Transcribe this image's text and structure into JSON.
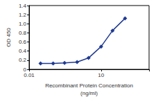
{
  "chart_data": {
    "type": "line",
    "x_label": "Recombinant Protein Concentration\n(ng/ml)",
    "y_label": "OD 450",
    "x": [
      0.03,
      0.1,
      0.3,
      1,
      3,
      10,
      30,
      100
    ],
    "values": [
      0.13,
      0.13,
      0.14,
      0.16,
      0.25,
      0.5,
      0.85,
      1.12
    ],
    "color": "#1f3a93",
    "marker": "diamond",
    "log": "x",
    "grid": false,
    "xlim": [
      0.01,
      1000
    ],
    "xticks": [
      0.01,
      10
    ],
    "ylim": [
      0,
      1.4
    ],
    "yticks": [
      0,
      {
        "value": 0.2,
        "label": "0.2"
      },
      {
        "value": 0.4,
        "label": "0.4"
      },
      {
        "value": 0.6,
        "label": "0.6"
      },
      {
        "value": 0.8,
        "label": "0.8"
      },
      {
        "value": 1.0,
        "label": "1.0"
      },
      {
        "value": 1.2,
        "label": "1.2"
      },
      {
        "value": 1.4,
        "label": "1.4"
      }
    ]
  }
}
